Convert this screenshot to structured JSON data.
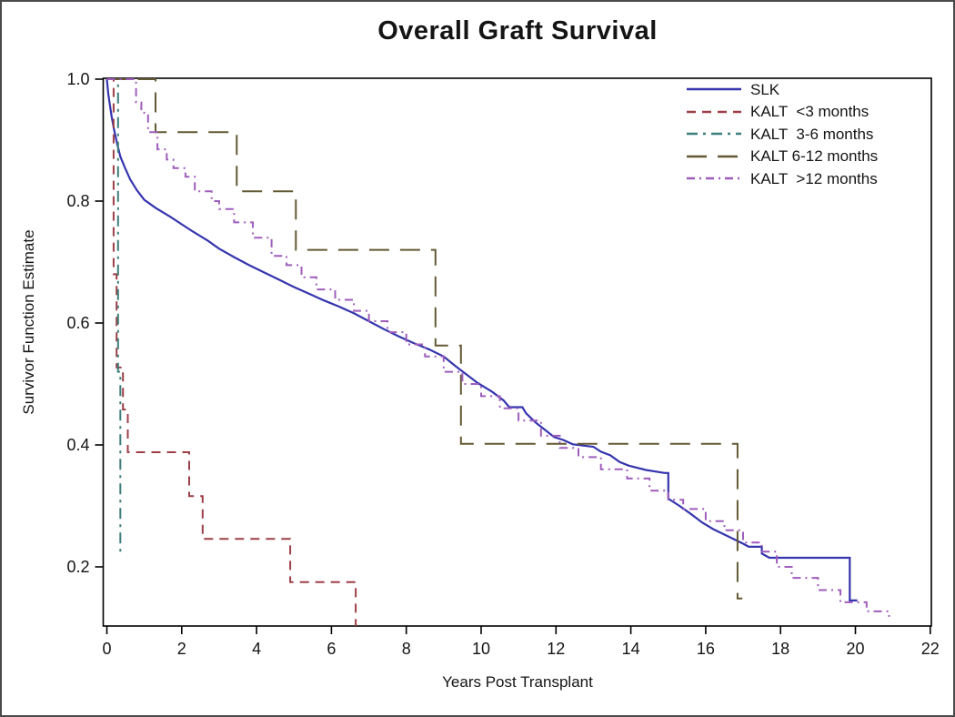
{
  "title": "Overall Graft Survival",
  "x_axis": {
    "label": "Years Post Transplant",
    "tick_labels": [
      "0",
      "2",
      "4",
      "6",
      "8",
      "10",
      "12",
      "14",
      "16",
      "18",
      "20",
      "22"
    ],
    "tick_values": [
      0,
      2,
      4,
      6,
      8,
      10,
      12,
      14,
      16,
      18,
      20,
      22
    ],
    "range": [
      0,
      22
    ]
  },
  "y_axis": {
    "label": "Survivor Function Estimate",
    "tick_labels": [
      "1.0",
      "0.8",
      "0.6",
      "0.4",
      "0.2"
    ],
    "tick_values": [
      1.0,
      0.8,
      0.6,
      0.4,
      0.2
    ],
    "range": [
      0.103,
      1.0
    ]
  },
  "legend": {
    "position": "top-right-inside",
    "entries": [
      "SLK",
      "KALT  <3 months",
      "KALT  3-6 months",
      "KALT 6-12 months",
      "KALT  >12 months"
    ]
  },
  "chart_data": {
    "type": "line",
    "subtype": "kaplan-meier-step",
    "title": "Overall Graft Survival",
    "xlabel": "Years Post Transplant",
    "ylabel": "Survivor Function Estimate",
    "xlim": [
      0,
      22
    ],
    "ylim": [
      0.1,
      1.0
    ],
    "grid": false,
    "series": [
      {
        "name": "SLK",
        "color": "#3535ae",
        "dash": "",
        "width": 2.2,
        "points": [
          [
            0,
            1.0
          ],
          [
            0.04,
            0.975
          ],
          [
            0.08,
            0.958
          ],
          [
            0.13,
            0.938
          ],
          [
            0.2,
            0.915
          ],
          [
            0.28,
            0.893
          ],
          [
            0.36,
            0.873
          ],
          [
            0.48,
            0.855
          ],
          [
            0.62,
            0.836
          ],
          [
            0.8,
            0.818
          ],
          [
            1.0,
            0.802
          ],
          [
            1.3,
            0.789
          ],
          [
            1.7,
            0.774
          ],
          [
            2.0,
            0.762
          ],
          [
            2.3,
            0.75
          ],
          [
            2.7,
            0.735
          ],
          [
            3.0,
            0.722
          ],
          [
            3.4,
            0.708
          ],
          [
            3.8,
            0.695
          ],
          [
            4.2,
            0.683
          ],
          [
            4.6,
            0.671
          ],
          [
            5.0,
            0.659
          ],
          [
            5.4,
            0.648
          ],
          [
            5.8,
            0.637
          ],
          [
            6.2,
            0.627
          ],
          [
            6.6,
            0.616
          ],
          [
            7.0,
            0.603
          ],
          [
            7.4,
            0.59
          ],
          [
            7.8,
            0.578
          ],
          [
            8.2,
            0.567
          ],
          [
            8.6,
            0.557
          ],
          [
            9.0,
            0.545
          ],
          [
            9.3,
            0.53
          ],
          [
            9.6,
            0.516
          ],
          [
            9.9,
            0.502
          ],
          [
            10.3,
            0.487
          ],
          [
            10.6,
            0.473
          ],
          [
            10.75,
            0.462
          ],
          [
            11.1,
            0.462
          ],
          [
            11.2,
            0.452
          ],
          [
            11.45,
            0.437
          ],
          [
            11.7,
            0.425
          ],
          [
            11.95,
            0.413
          ],
          [
            12.2,
            0.408
          ],
          [
            12.45,
            0.401
          ],
          [
            13.0,
            0.397
          ],
          [
            13.2,
            0.389
          ],
          [
            13.45,
            0.383
          ],
          [
            13.7,
            0.372
          ],
          [
            13.95,
            0.366
          ],
          [
            14.4,
            0.359
          ],
          [
            14.9,
            0.354
          ],
          [
            15.0,
            0.354
          ],
          [
            15.0,
            0.312
          ],
          [
            15.3,
            0.3
          ],
          [
            15.6,
            0.287
          ],
          [
            15.9,
            0.273
          ],
          [
            16.2,
            0.262
          ],
          [
            16.6,
            0.25
          ],
          [
            17.0,
            0.238
          ],
          [
            17.15,
            0.233
          ],
          [
            17.5,
            0.233
          ],
          [
            17.5,
            0.222
          ],
          [
            17.7,
            0.215
          ],
          [
            19.85,
            0.215
          ],
          [
            19.85,
            0.145
          ],
          [
            20.05,
            0.145
          ]
        ]
      },
      {
        "name": "KALT  <3 months",
        "color": "#9c3f48",
        "dash": "10,7",
        "width": 2,
        "points": [
          [
            0,
            1.0
          ],
          [
            0.18,
            1.0
          ],
          [
            0.18,
            0.68
          ],
          [
            0.26,
            0.68
          ],
          [
            0.26,
            0.527
          ],
          [
            0.43,
            0.527
          ],
          [
            0.43,
            0.458
          ],
          [
            0.56,
            0.458
          ],
          [
            0.56,
            0.388
          ],
          [
            2.2,
            0.388
          ],
          [
            2.2,
            0.316
          ],
          [
            2.56,
            0.316
          ],
          [
            2.56,
            0.246
          ],
          [
            4.9,
            0.246
          ],
          [
            4.9,
            0.175
          ],
          [
            6.65,
            0.175
          ],
          [
            6.65,
            0.103
          ]
        ]
      },
      {
        "name": "KALT  3-6 months",
        "color": "#3c7e7b",
        "dash": "12,6,3,6",
        "width": 2,
        "points": [
          [
            0,
            1.0
          ],
          [
            0.3,
            1.0
          ],
          [
            0.3,
            0.52
          ],
          [
            0.36,
            0.52
          ],
          [
            0.36,
            0.225
          ],
          [
            0.44,
            0.225
          ]
        ]
      },
      {
        "name": "KALT 6-12 months",
        "color": "#635934",
        "dash": "22,12",
        "width": 2,
        "points": [
          [
            0,
            1.0
          ],
          [
            1.3,
            1.0
          ],
          [
            1.3,
            0.913
          ],
          [
            3.47,
            0.913
          ],
          [
            3.47,
            0.816
          ],
          [
            5.05,
            0.816
          ],
          [
            5.05,
            0.72
          ],
          [
            8.78,
            0.72
          ],
          [
            8.78,
            0.563
          ],
          [
            9.46,
            0.563
          ],
          [
            9.46,
            0.402
          ],
          [
            16.85,
            0.402
          ],
          [
            16.85,
            0.148
          ],
          [
            16.98,
            0.148
          ]
        ]
      },
      {
        "name": "KALT  >12 months",
        "color": "#9f5dbb",
        "dash": "9,5,2,5",
        "width": 2,
        "points": [
          [
            0,
            1.0
          ],
          [
            0.78,
            1.0
          ],
          [
            0.78,
            0.962
          ],
          [
            0.92,
            0.962
          ],
          [
            0.92,
            0.945
          ],
          [
            1.1,
            0.945
          ],
          [
            1.1,
            0.913
          ],
          [
            1.35,
            0.913
          ],
          [
            1.35,
            0.885
          ],
          [
            1.6,
            0.885
          ],
          [
            1.6,
            0.868
          ],
          [
            1.78,
            0.868
          ],
          [
            1.78,
            0.854
          ],
          [
            2.1,
            0.854
          ],
          [
            2.1,
            0.84
          ],
          [
            2.35,
            0.84
          ],
          [
            2.35,
            0.816
          ],
          [
            2.8,
            0.816
          ],
          [
            2.8,
            0.8
          ],
          [
            3.0,
            0.8
          ],
          [
            3.0,
            0.787
          ],
          [
            3.4,
            0.787
          ],
          [
            3.4,
            0.765
          ],
          [
            3.9,
            0.765
          ],
          [
            3.9,
            0.74
          ],
          [
            4.4,
            0.74
          ],
          [
            4.4,
            0.71
          ],
          [
            4.8,
            0.71
          ],
          [
            4.8,
            0.695
          ],
          [
            5.2,
            0.695
          ],
          [
            5.2,
            0.675
          ],
          [
            5.6,
            0.675
          ],
          [
            5.6,
            0.655
          ],
          [
            6.1,
            0.655
          ],
          [
            6.1,
            0.638
          ],
          [
            6.6,
            0.638
          ],
          [
            6.6,
            0.62
          ],
          [
            7.0,
            0.62
          ],
          [
            7.0,
            0.603
          ],
          [
            7.5,
            0.603
          ],
          [
            7.5,
            0.585
          ],
          [
            8.0,
            0.585
          ],
          [
            8.0,
            0.565
          ],
          [
            8.5,
            0.565
          ],
          [
            8.5,
            0.545
          ],
          [
            9.0,
            0.545
          ],
          [
            9.0,
            0.52
          ],
          [
            9.5,
            0.52
          ],
          [
            9.5,
            0.5
          ],
          [
            10.0,
            0.5
          ],
          [
            10.0,
            0.48
          ],
          [
            10.5,
            0.48
          ],
          [
            10.5,
            0.46
          ],
          [
            11.0,
            0.46
          ],
          [
            11.0,
            0.44
          ],
          [
            11.6,
            0.44
          ],
          [
            11.6,
            0.415
          ],
          [
            12.1,
            0.415
          ],
          [
            12.1,
            0.395
          ],
          [
            12.6,
            0.395
          ],
          [
            12.6,
            0.38
          ],
          [
            13.2,
            0.38
          ],
          [
            13.2,
            0.36
          ],
          [
            13.9,
            0.36
          ],
          [
            13.9,
            0.345
          ],
          [
            14.5,
            0.345
          ],
          [
            14.5,
            0.325
          ],
          [
            15.0,
            0.325
          ],
          [
            15.0,
            0.31
          ],
          [
            15.4,
            0.31
          ],
          [
            15.4,
            0.295
          ],
          [
            16.0,
            0.295
          ],
          [
            16.0,
            0.275
          ],
          [
            16.5,
            0.275
          ],
          [
            16.5,
            0.26
          ],
          [
            17.0,
            0.26
          ],
          [
            17.0,
            0.24
          ],
          [
            17.5,
            0.24
          ],
          [
            17.5,
            0.225
          ],
          [
            17.9,
            0.225
          ],
          [
            17.9,
            0.2
          ],
          [
            18.3,
            0.2
          ],
          [
            18.3,
            0.182
          ],
          [
            19.0,
            0.182
          ],
          [
            19.0,
            0.162
          ],
          [
            19.6,
            0.162
          ],
          [
            19.6,
            0.142
          ],
          [
            20.3,
            0.142
          ],
          [
            20.3,
            0.127
          ],
          [
            20.9,
            0.127
          ],
          [
            20.9,
            0.118
          ]
        ]
      }
    ],
    "legend_position": "top-right-inside"
  },
  "colors": {
    "frame": "#000000",
    "text": "#141414",
    "border": "#4a4a4a",
    "background": "#ffffff"
  }
}
